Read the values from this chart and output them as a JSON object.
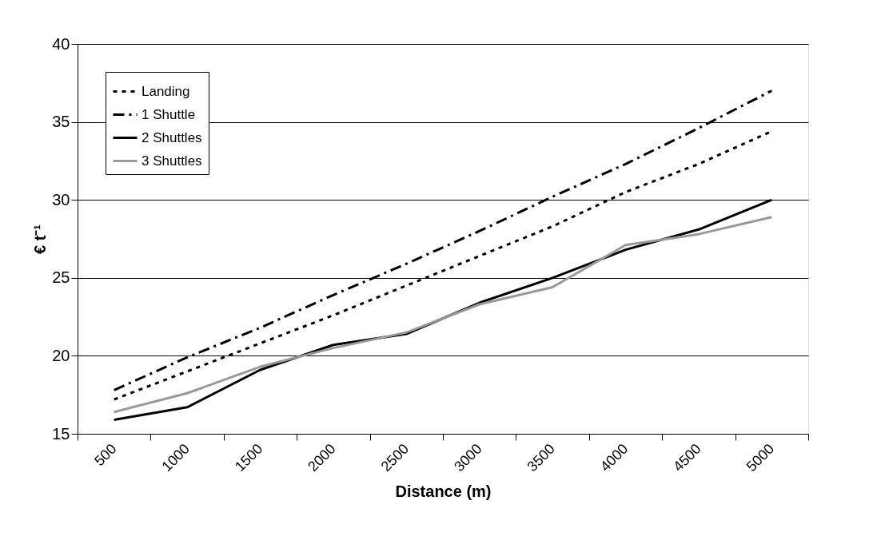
{
  "chart_data": {
    "type": "line",
    "xlabel": "Distance (m)",
    "ylabel": "€ t⁻¹",
    "categories": [
      "500",
      "1000",
      "1500",
      "2000",
      "2500",
      "3000",
      "3500",
      "4000",
      "4500",
      "5000"
    ],
    "series": [
      {
        "name": "Landing",
        "color": "#000000",
        "line_style": "dotted",
        "values": [
          17.2,
          19.0,
          20.8,
          22.6,
          24.5,
          26.4,
          28.3,
          30.5,
          32.3,
          34.4
        ]
      },
      {
        "name": "1 Shuttle",
        "color": "#000000",
        "line_style": "dashed",
        "values": [
          17.8,
          19.9,
          21.8,
          23.9,
          25.9,
          28.0,
          30.2,
          32.3,
          34.6,
          37.0
        ]
      },
      {
        "name": "2 Shuttles",
        "color": "#000000",
        "line_style": "solid",
        "values": [
          15.9,
          16.7,
          19.1,
          20.7,
          21.4,
          23.4,
          25.0,
          26.8,
          28.1,
          30.0
        ]
      },
      {
        "name": "3 Shuttles",
        "color": "#999999",
        "line_style": "solid",
        "values": [
          16.4,
          17.6,
          19.3,
          20.5,
          21.5,
          23.3,
          24.4,
          27.1,
          27.8,
          28.9
        ]
      }
    ],
    "ylim": [
      15,
      40
    ],
    "yticks": [
      15,
      20,
      25,
      30,
      35,
      40
    ],
    "grid": "y",
    "legend": "top left",
    "marker": "none"
  }
}
